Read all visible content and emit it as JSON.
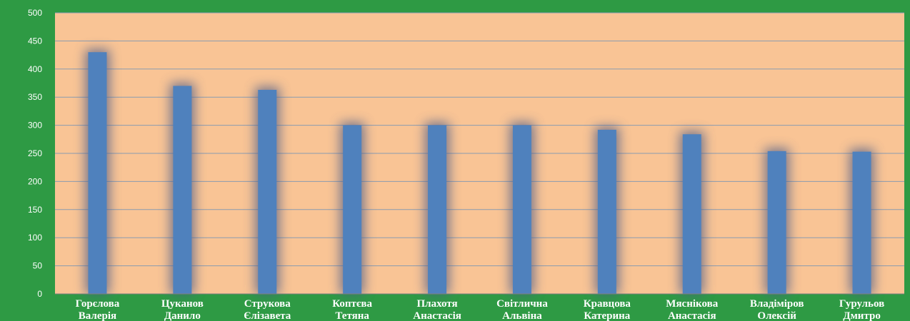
{
  "chart_data": {
    "type": "bar",
    "title": "",
    "xlabel": "",
    "ylabel": "",
    "ylim": [
      0,
      500
    ],
    "yticks": [
      0,
      50,
      100,
      150,
      200,
      250,
      300,
      350,
      400,
      450,
      500
    ],
    "grid": true,
    "categories": [
      [
        "Горєлова",
        "Валерія"
      ],
      [
        "Цуканов",
        "Данило"
      ],
      [
        "Струкова",
        "Єлізавета"
      ],
      [
        "Коптєва",
        "Тетяна"
      ],
      [
        "Плахотя",
        "Анастасія"
      ],
      [
        "Світлична",
        "Альвіна"
      ],
      [
        "Кравцова",
        "Катерина"
      ],
      [
        "Мяснікова",
        "Анастасія"
      ],
      [
        "Владіміров",
        "Олексій"
      ],
      [
        "Гурульов",
        "Дмитро"
      ]
    ],
    "values": [
      430,
      370,
      363,
      300,
      300,
      300,
      292,
      284,
      254,
      253
    ],
    "colors": {
      "bar": "#4f81bd",
      "plot_background": "#f9c495",
      "frame": "#2e9a44",
      "gridline": "#8a9bb0",
      "text": "#ffffff"
    }
  }
}
